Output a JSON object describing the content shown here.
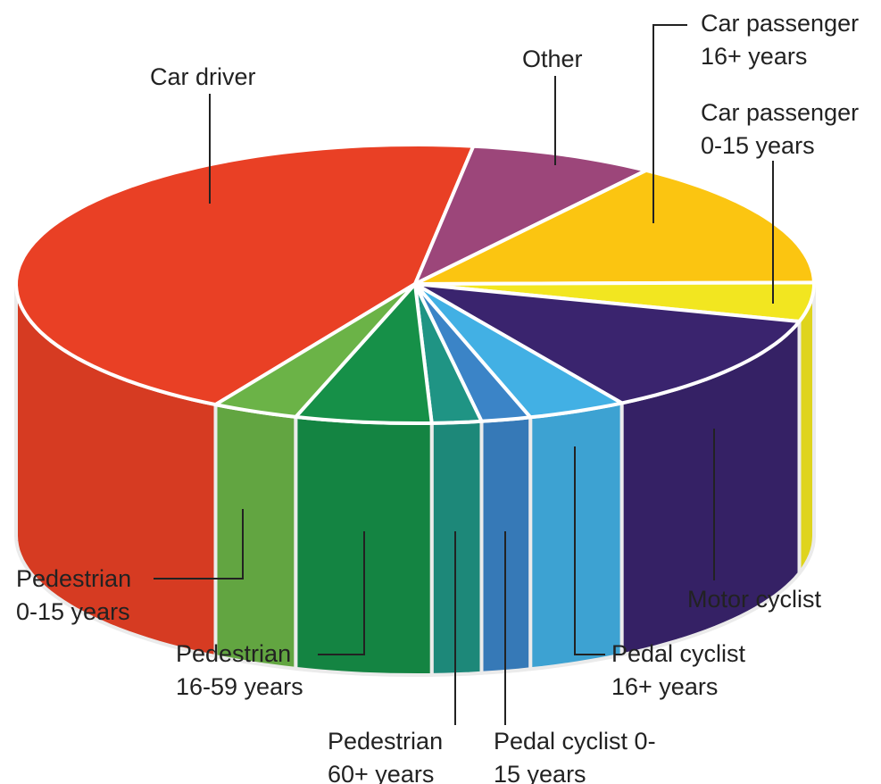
{
  "chart_data": {
    "type": "pie3d",
    "categories": [
      "Car driver",
      "Other",
      "Car passenger 16+ years",
      "Car passenger 0-15 years",
      "Motor cyclist",
      "Pedal cyclist 16+ years",
      "Pedal cyclist 0-15 years",
      "Pedestrian 60+ years",
      "Pedestrian 16-59 years",
      "Pedestrian 0-15 years"
    ],
    "values": [
      44,
      7.5,
      15,
      4.5,
      12,
      4,
      2,
      2,
      5.5,
      3.5
    ],
    "colors": [
      "#e94025",
      "#9c467a",
      "#fbc511",
      "#f2e620",
      "#3a246e",
      "#42b0e4",
      "#3b84c7",
      "#1f9484",
      "#169048",
      "#6bb347"
    ]
  }
}
